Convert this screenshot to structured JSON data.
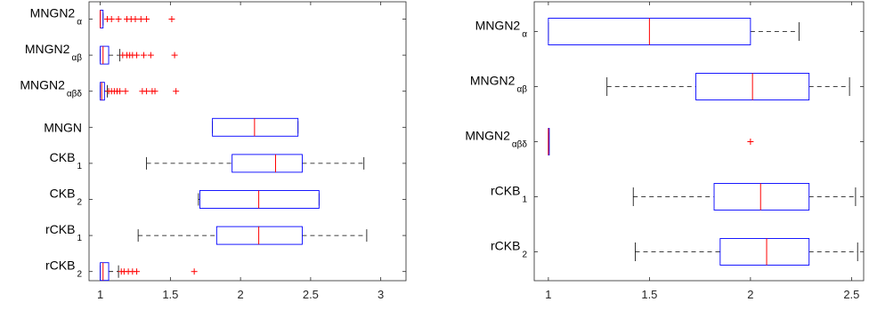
{
  "chart_data": [
    {
      "type": "box",
      "title": "",
      "xlabel": "",
      "ylabel": "",
      "xlim": [
        0.92,
        3.18
      ],
      "xticks": [
        "1",
        "1.5",
        "2",
        "2.5",
        "3"
      ],
      "grid": false,
      "categories": [
        {
          "main": "MNGN2",
          "sub": "α"
        },
        {
          "main": "MNGN2",
          "sub": "αβ"
        },
        {
          "main": "MNGN2",
          "sub": "αβδ"
        },
        {
          "main": "MNGN",
          "sub": ""
        },
        {
          "main": "CKB",
          "sub": "1"
        },
        {
          "main": "CKB",
          "sub": "2"
        },
        {
          "main": "rCKB",
          "sub": "1"
        },
        {
          "main": "rCKB",
          "sub": "2"
        }
      ],
      "boxes": [
        {
          "wlow": 1.0,
          "q1": 1.0,
          "median": 1.0,
          "q3": 1.02,
          "whigh": 1.02,
          "outliers": [
            1.05,
            1.08,
            1.13,
            1.19,
            1.22,
            1.25,
            1.29,
            1.33,
            1.51
          ]
        },
        {
          "wlow": 1.0,
          "q1": 1.0,
          "median": 1.02,
          "q3": 1.06,
          "whigh": 1.14,
          "outliers": [
            1.16,
            1.19,
            1.21,
            1.23,
            1.26,
            1.31,
            1.36,
            1.53
          ]
        },
        {
          "wlow": 1.0,
          "q1": 1.0,
          "median": 1.01,
          "q3": 1.03,
          "whigh": 1.05,
          "outliers": [
            1.06,
            1.08,
            1.1,
            1.12,
            1.14,
            1.18,
            1.3,
            1.33,
            1.37,
            1.39,
            1.54
          ]
        },
        {
          "wlow": 1.8,
          "q1": 1.8,
          "median": 2.1,
          "q3": 2.41,
          "whigh": 2.41,
          "outliers": []
        },
        {
          "wlow": 1.33,
          "q1": 1.94,
          "median": 2.25,
          "q3": 2.44,
          "whigh": 2.88,
          "outliers": []
        },
        {
          "wlow": 1.7,
          "q1": 1.71,
          "median": 2.13,
          "q3": 2.56,
          "whigh": 2.56,
          "outliers": []
        },
        {
          "wlow": 1.27,
          "q1": 1.83,
          "median": 2.13,
          "q3": 2.44,
          "whigh": 2.9,
          "outliers": []
        },
        {
          "wlow": 1.0,
          "q1": 1.0,
          "median": 1.02,
          "q3": 1.06,
          "whigh": 1.13,
          "outliers": [
            1.15,
            1.17,
            1.2,
            1.23,
            1.26,
            1.67
          ]
        }
      ]
    },
    {
      "type": "box",
      "title": "",
      "xlabel": "",
      "ylabel": "",
      "xlim": [
        0.93,
        2.56
      ],
      "xticks": [
        "1",
        "1.5",
        "2",
        "2.5"
      ],
      "grid": false,
      "categories": [
        {
          "main": "MNGN2",
          "sub": "α"
        },
        {
          "main": "MNGN2",
          "sub": "αβ"
        },
        {
          "main": "MNGN2",
          "sub": "αβδ"
        },
        {
          "main": "rCKB",
          "sub": "1"
        },
        {
          "main": "rCKB",
          "sub": "2"
        }
      ],
      "boxes": [
        {
          "wlow": 1.0,
          "q1": 1.0,
          "median": 1.5,
          "q3": 2.0,
          "whigh": 2.24,
          "outliers": []
        },
        {
          "wlow": 1.29,
          "q1": 1.73,
          "median": 2.01,
          "q3": 2.29,
          "whigh": 2.49,
          "outliers": []
        },
        {
          "wlow": 1.0,
          "q1": 1.0,
          "median": 1.0,
          "q3": 1.0,
          "whigh": 1.0,
          "outliers": [
            2.0
          ]
        },
        {
          "wlow": 1.42,
          "q1": 1.82,
          "median": 2.05,
          "q3": 2.29,
          "whigh": 2.52,
          "outliers": []
        },
        {
          "wlow": 1.43,
          "q1": 1.85,
          "median": 2.08,
          "q3": 2.29,
          "whigh": 2.53,
          "outliers": []
        }
      ]
    }
  ],
  "colors": {
    "box": "#0000ff",
    "median": "#ff0000",
    "whisker": "#000000",
    "outlier": "#ff0000",
    "axis": "#262626"
  }
}
